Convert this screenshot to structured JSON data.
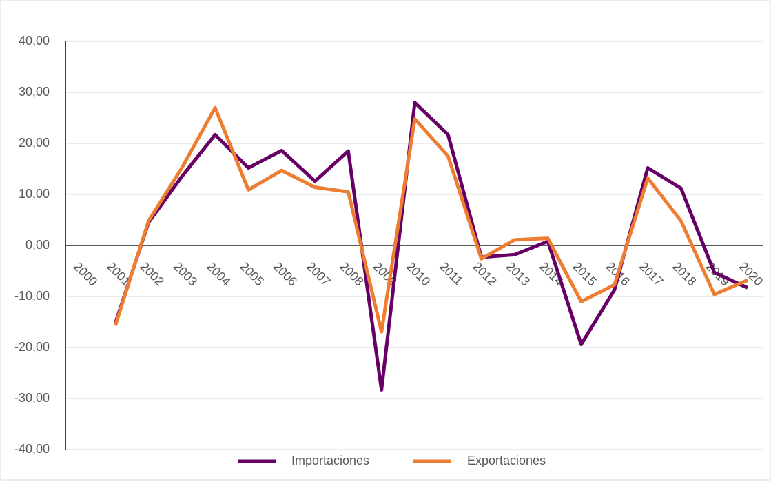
{
  "chart_data": {
    "type": "line",
    "categories": [
      "2000",
      "2001",
      "2002",
      "2003",
      "2004",
      "2005",
      "2006",
      "2007",
      "2008",
      "2009",
      "2010",
      "2011",
      "2012",
      "2013",
      "2014",
      "2015",
      "2016",
      "2017",
      "2018",
      "2019",
      "2020"
    ],
    "series": [
      {
        "name": "Importaciones",
        "color": "#660066",
        "values": [
          null,
          -15.3,
          4.5,
          13.5,
          21.7,
          15.2,
          18.6,
          12.6,
          18.5,
          -28.3,
          28.0,
          21.7,
          -2.3,
          -1.8,
          0.8,
          -19.4,
          -8.7,
          15.2,
          11.2,
          -5.3,
          -8.3
        ]
      },
      {
        "name": "Exportaciones",
        "color": "#ed7d31",
        "values": [
          null,
          -15.7,
          4.8,
          15.2,
          27.0,
          10.9,
          14.7,
          11.4,
          10.5,
          -16.9,
          24.8,
          17.5,
          -2.6,
          1.1,
          1.4,
          -11.0,
          -7.7,
          13.2,
          4.8,
          -9.6,
          -6.8
        ]
      }
    ],
    "ylim": [
      -40,
      40
    ],
    "yticks": [
      {
        "value": -40,
        "label": "-40,00"
      },
      {
        "value": -30,
        "label": "-30,00"
      },
      {
        "value": -20,
        "label": "-20,00"
      },
      {
        "value": -10,
        "label": "-10,00"
      },
      {
        "value": 0,
        "label": "0,00"
      },
      {
        "value": 10,
        "label": "10,00"
      },
      {
        "value": 20,
        "label": "20,00"
      },
      {
        "value": 30,
        "label": "30,00"
      },
      {
        "value": 40,
        "label": "40,00"
      }
    ],
    "grid": true,
    "legend": "bottom"
  }
}
